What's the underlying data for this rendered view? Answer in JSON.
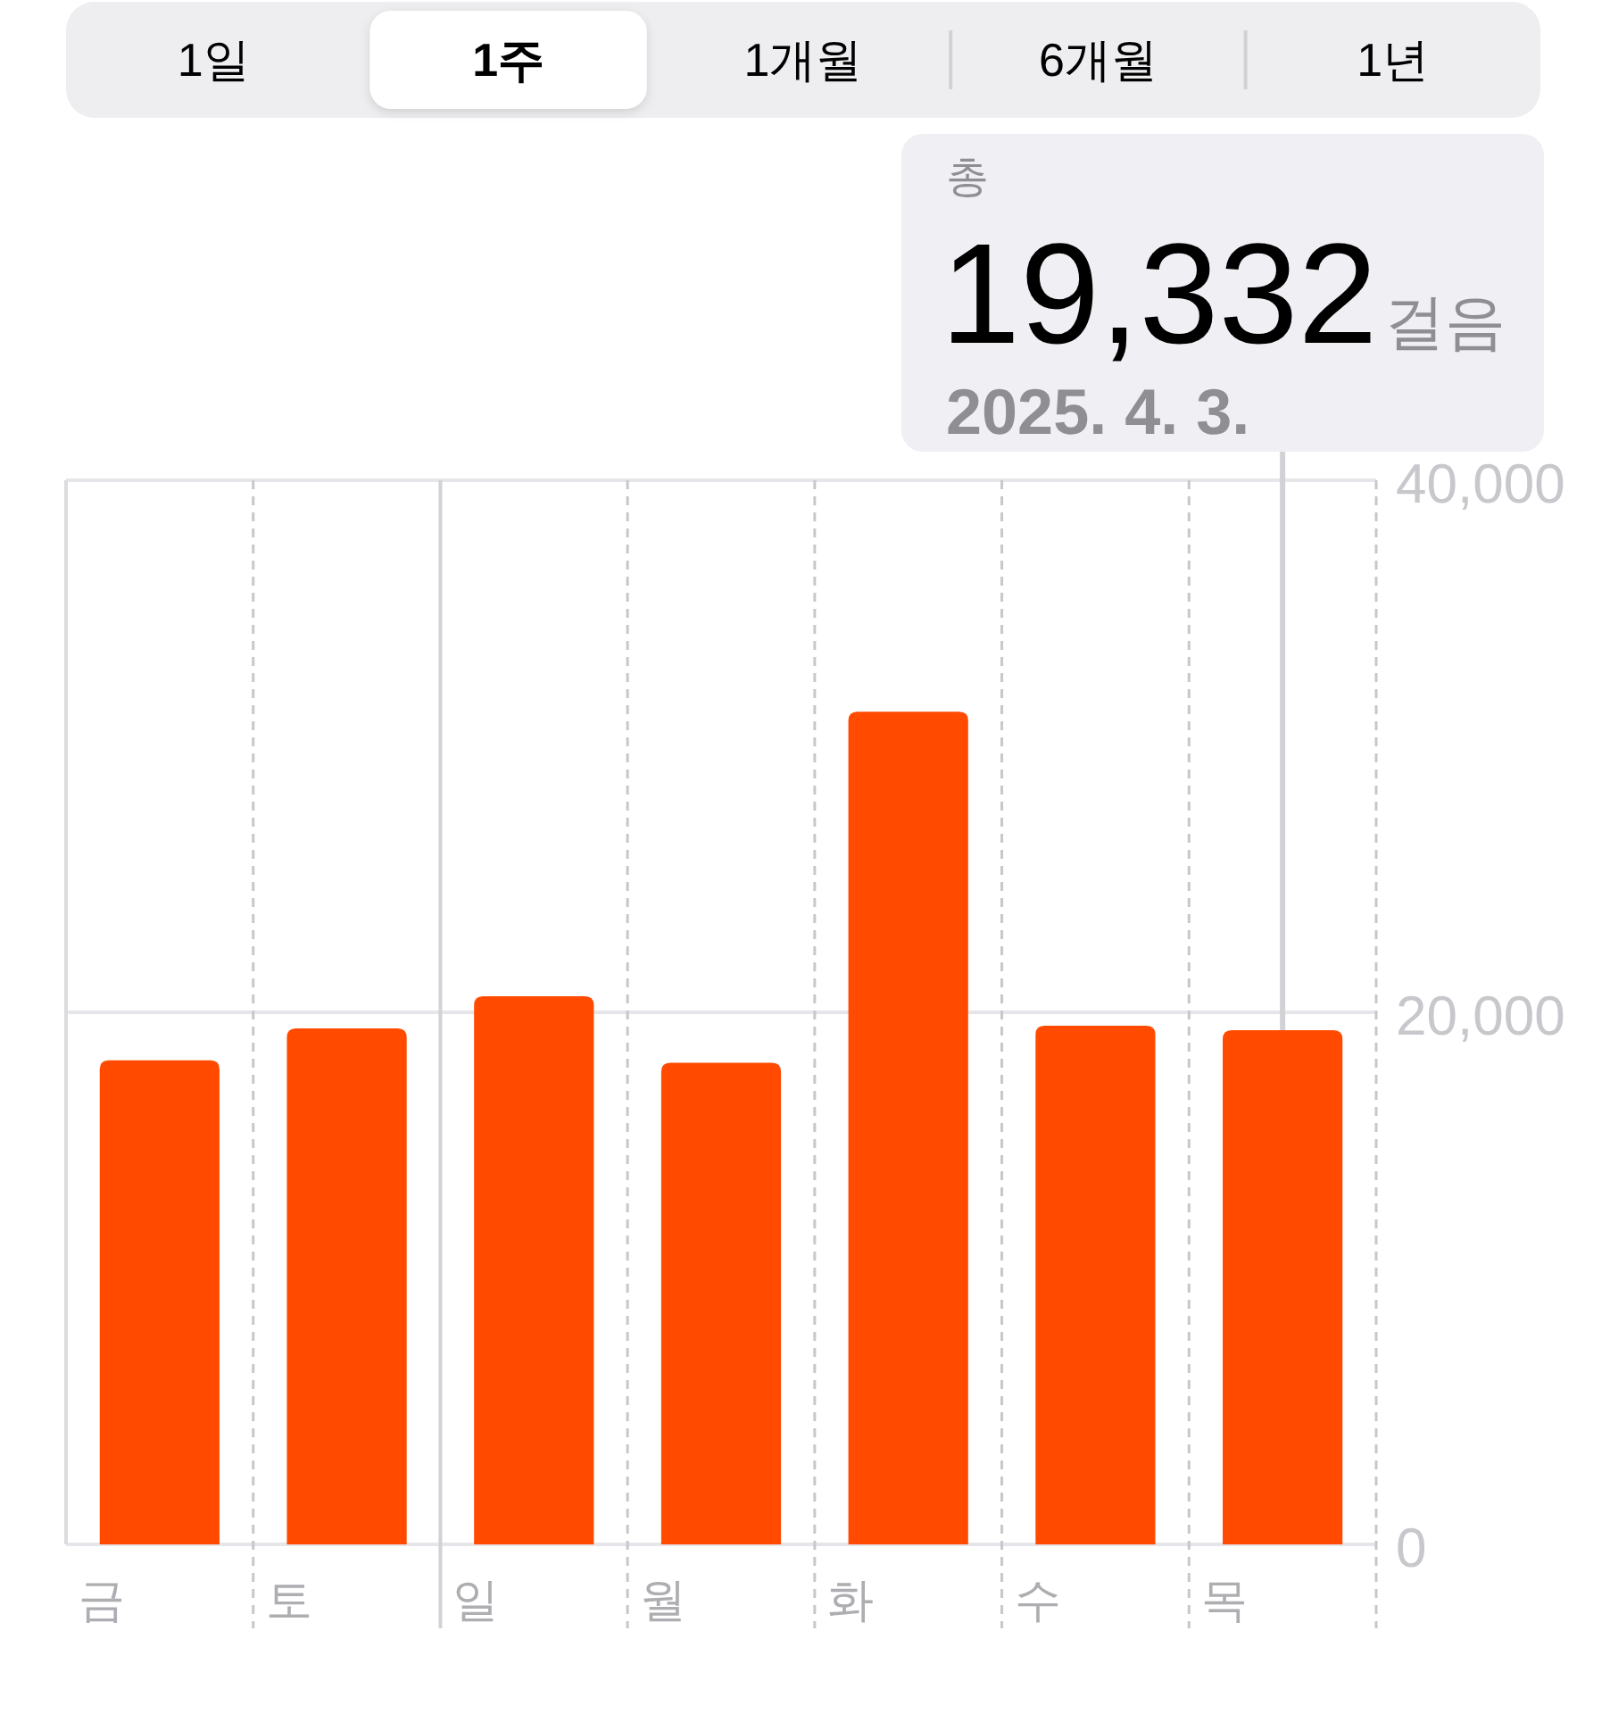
{
  "chart_data": [
    {
      "type": "other",
      "categories": [
        "1일",
        "1주",
        "1개월",
        "6개월",
        "1년"
      ],
      "colors": [
        "#eeeef0",
        "#ffffff",
        "#eeeef0",
        "#eeeef0",
        "#eeeef0"
      ]
    },
    {
      "type": "bar",
      "categories": [
        "금",
        "토",
        "일",
        "월",
        "화",
        "수",
        "목"
      ],
      "values": [
        18200,
        19400,
        20600,
        18100,
        31300,
        19500,
        19332
      ],
      "color": "#ff4a00",
      "ylim": [
        0,
        40000
      ],
      "yticks": [
        0,
        {
          "value": 20000,
          "label": "20,000"
        },
        {
          "value": 40000,
          "label": "40,000"
        }
      ],
      "grid": true,
      "ref_lines": [
        {
          "axis": "x",
          "value": "일",
          "color": "#d1d1d6",
          "line_style": "solid"
        }
      ],
      "value_labels": [
        null,
        null,
        null,
        null,
        null,
        null,
        "19,332걸음"
      ],
      "annotations": [
        "총",
        "2025. 4. 3."
      ]
    }
  ]
}
